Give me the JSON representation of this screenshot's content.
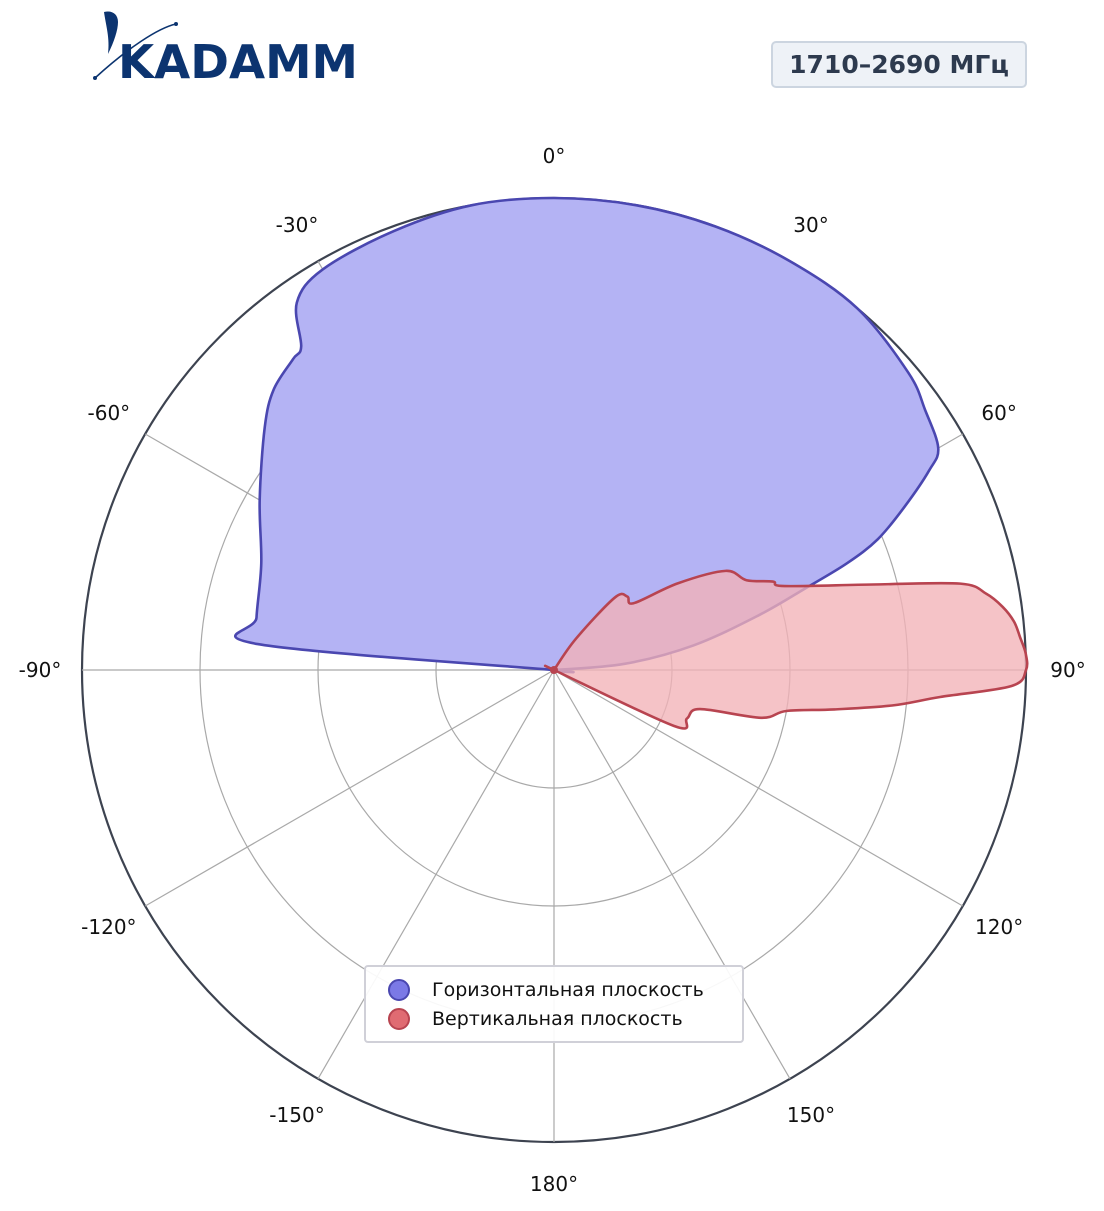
{
  "brand": {
    "logo_text": "KADAMM",
    "color": "#0c3470"
  },
  "badge": {
    "text": "1710–2690 МГц"
  },
  "chart_data": {
    "type": "polar",
    "theta_labels": [
      "0°",
      "30°",
      "60°",
      "90°",
      "120°",
      "150°",
      "180°",
      "-150°",
      "-120°",
      "-90°",
      "-60°",
      "-30°"
    ],
    "theta_direction": "clockwise",
    "theta_zero": "top",
    "r_range": [
      0,
      1
    ],
    "r_gridlines": [
      0.25,
      0.5,
      0.75,
      1.0
    ],
    "grid": true,
    "legend_position": "bottom-center",
    "series": [
      {
        "name": "Горизонтальная плоскость",
        "fill_color": "#b4b3f4",
        "line_color": "#4a47b0",
        "marker_color": "#7b79e6",
        "angles": [
          -90,
          -85,
          -80,
          -70,
          -60,
          -50,
          -45,
          -40,
          -38,
          -35,
          -30,
          -20,
          -10,
          0,
          10,
          20,
          30,
          40,
          50,
          55,
          60,
          62,
          65,
          68,
          70,
          72,
          75,
          80,
          85,
          90
        ],
        "values": [
          0.0,
          0.63,
          0.64,
          0.66,
          0.72,
          0.8,
          0.84,
          0.86,
          0.87,
          0.95,
          0.98,
          0.99,
          1.0,
          1.0,
          1.0,
          1.0,
          1.0,
          1.0,
          0.98,
          0.96,
          0.94,
          0.9,
          0.82,
          0.74,
          0.66,
          0.56,
          0.45,
          0.3,
          0.15,
          0.0
        ]
      },
      {
        "name": "Вертикальная плоскость",
        "fill_color": "#f2b2b7",
        "line_color": "#b84450",
        "marker_color": "#e06b72",
        "angles": [
          0,
          20,
          35,
          40,
          45,
          50,
          55,
          60,
          65,
          68,
          70,
          75,
          78,
          80,
          82,
          84,
          86,
          88,
          90,
          92,
          94,
          96,
          98,
          100,
          103,
          105,
          110,
          115,
          120,
          130,
          180
        ],
        "values": [
          0.0,
          0.0,
          0.08,
          0.2,
          0.22,
          0.22,
          0.32,
          0.42,
          0.45,
          0.5,
          0.52,
          0.7,
          0.88,
          0.93,
          0.96,
          0.98,
          0.99,
          1.0,
          1.0,
          0.97,
          0.82,
          0.72,
          0.6,
          0.5,
          0.45,
          0.32,
          0.3,
          0.28,
          0.0,
          0.0,
          0.0
        ]
      }
    ]
  }
}
